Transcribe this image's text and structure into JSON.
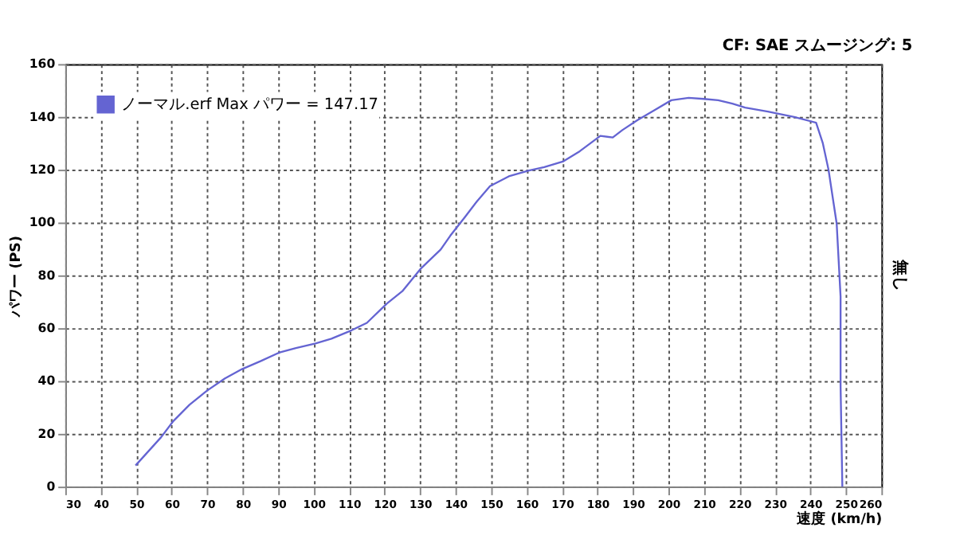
{
  "chart_data": {
    "type": "line",
    "xlabel": "速度 (km/h)",
    "ylabel": "パワー (PS)",
    "y2label": "無し",
    "annotations": [
      "CF: SAE スムージング: 5"
    ],
    "xlim": [
      30,
      260
    ],
    "xticks": [
      30,
      40,
      50,
      60,
      70,
      80,
      90,
      100,
      110,
      120,
      130,
      140,
      150,
      160,
      170,
      180,
      190,
      200,
      210,
      220,
      230,
      240,
      250,
      260
    ],
    "ylim": [
      0,
      160
    ],
    "yticks": [
      0,
      20,
      40,
      60,
      80,
      100,
      120,
      140,
      160
    ],
    "grid": true,
    "legend": "top left",
    "line_style": "solid",
    "series": [
      {
        "name": "ノーマル.erf Max パワー = 147.17",
        "color": "#6464d2",
        "x": [
          49.8,
          57,
          60.5,
          65,
          70.1,
          75,
          79.8,
          85,
          90.2,
          95,
          100.5,
          105,
          110.7,
          115,
          120.6,
          125,
          130.3,
          135.8,
          138.5,
          142.7,
          146,
          149.7,
          155,
          160.7,
          165,
          170.4,
          175,
          180.8,
          184.3,
          187,
          191.2,
          196,
          200.8,
          205.7,
          210,
          214,
          218,
          221.6,
          228,
          235.4,
          241.6,
          243.5,
          245.1,
          247.4,
          248.5,
          248.5,
          249
        ],
        "values": [
          8,
          18.7,
          24.9,
          31,
          36.5,
          41,
          44.5,
          47.5,
          50.7,
          52.5,
          54.2,
          56,
          59.2,
          62,
          69.3,
          74,
          82.7,
          89.8,
          95,
          102.2,
          108,
          113.8,
          117.5,
          119.7,
          121,
          123.2,
          127,
          132.8,
          132.2,
          135,
          138.7,
          142.5,
          146.3,
          147.2,
          146.8,
          146.3,
          145,
          143.5,
          142,
          140,
          137.8,
          130,
          120,
          99.6,
          72,
          38,
          0
        ]
      }
    ]
  }
}
